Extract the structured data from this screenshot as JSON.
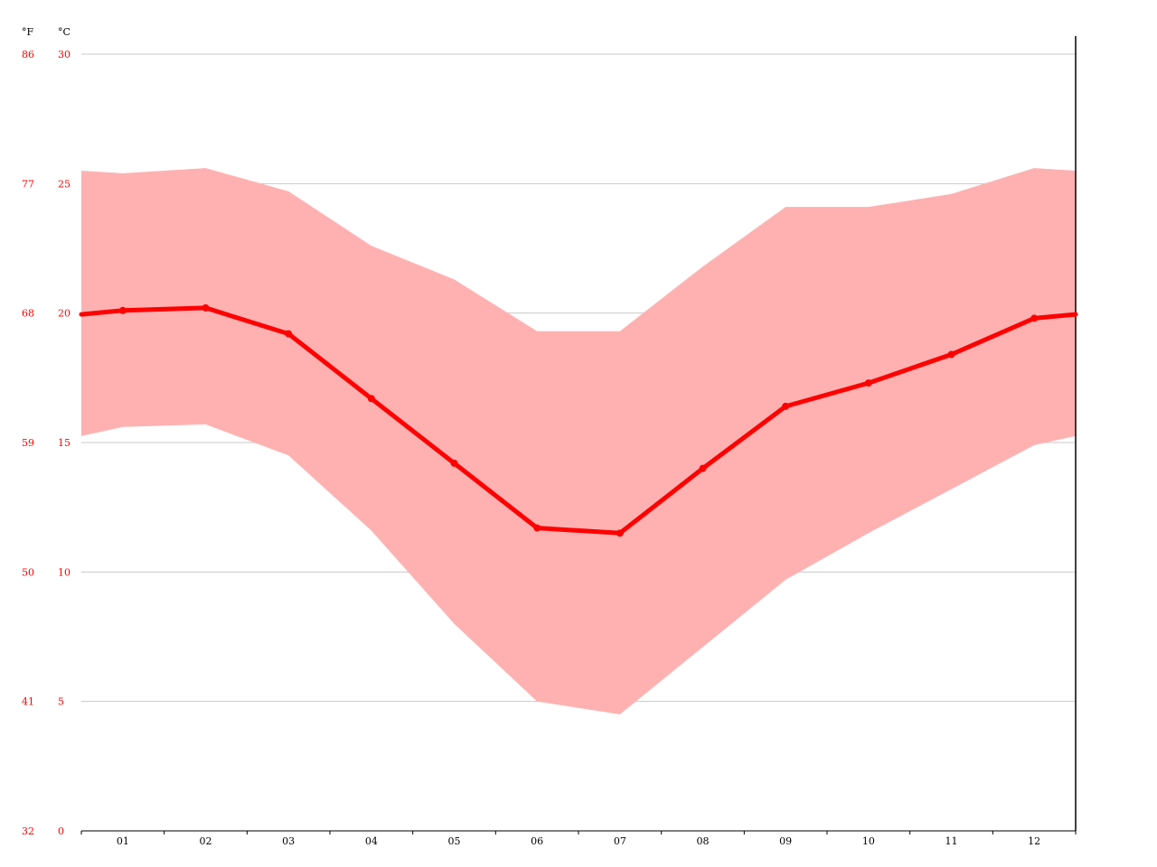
{
  "chart_data": {
    "type": "area",
    "title": "",
    "xlabel": "",
    "ylabel": "",
    "categories": [
      "01",
      "02",
      "03",
      "04",
      "05",
      "06",
      "07",
      "08",
      "09",
      "10",
      "11",
      "12"
    ],
    "series": [
      {
        "values": [
          20.1,
          20.2,
          19.2,
          16.7,
          14.2,
          11.7,
          11.5,
          14.0,
          16.4,
          17.3,
          18.4,
          19.8
        ]
      }
    ],
    "range": {
      "min": [
        15.6,
        15.7,
        14.5,
        11.6,
        8.0,
        5.0,
        4.5,
        7.1,
        9.7,
        11.5,
        13.2,
        14.9
      ],
      "max": [
        25.4,
        25.6,
        24.7,
        22.6,
        21.3,
        19.3,
        19.3,
        21.8,
        24.1,
        24.1,
        24.6,
        25.6
      ]
    },
    "y_celsius_ticks": [
      0,
      5,
      10,
      15,
      20,
      25,
      30
    ],
    "y_fahrenheit_ticks": [
      32,
      41,
      50,
      59,
      68,
      77,
      86
    ],
    "unit_celsius": "°C",
    "unit_fahrenheit": "°F",
    "ylim": [
      0,
      30
    ],
    "grid": true,
    "colors": {
      "line": "#ff0000",
      "band": "#ffb1b1",
      "grid": "#c8c8c8",
      "axis_labels": "#ff0000",
      "axis": "#000000"
    }
  }
}
